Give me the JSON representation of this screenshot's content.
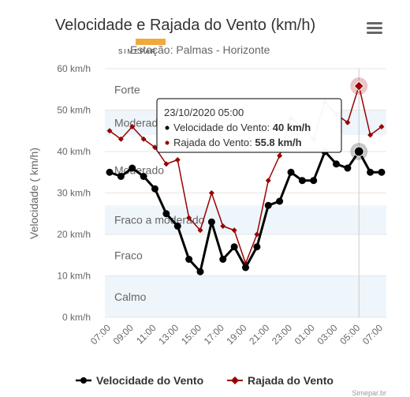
{
  "chart_data": {
    "type": "line",
    "title": "Velocidade e Rajada do Vento (km/h)",
    "subtitle": "Estação: Palmas - Horizonte",
    "ylabel": "Velocidade ( km/h)",
    "ylim": [
      0,
      60
    ],
    "y_ticks": [
      "0 km/h",
      "10 km/h",
      "20 km/h",
      "30 km/h",
      "40 km/h",
      "50 km/h",
      "60 km/h"
    ],
    "x_tick_labels": [
      "07:00",
      "09:00",
      "11:00",
      "13:00",
      "15:00",
      "17:00",
      "19:00",
      "21:00",
      "23:00",
      "01:00",
      "03:00",
      "05:00",
      "07:00"
    ],
    "x_hours": [
      7,
      8,
      9,
      10,
      11,
      12,
      13,
      14,
      15,
      16,
      17,
      18,
      19,
      20,
      21,
      22,
      23,
      24,
      25,
      26,
      27,
      28,
      29,
      30,
      31
    ],
    "bands": [
      {
        "label": "Calmo",
        "from": 0,
        "to": 10,
        "color": "#eef5fb"
      },
      {
        "label": "Fraco",
        "from": 10,
        "to": 20,
        "color": "#ffffff"
      },
      {
        "label": "Fraco a moderado",
        "from": 20,
        "to": 27,
        "color": "#eef5fb"
      },
      {
        "label": "Moderado",
        "from": 27,
        "to": 44,
        "color": "#ffffff"
      },
      {
        "label": "Moderado",
        "from": 44,
        "to": 50,
        "color": "#eef5fb"
      },
      {
        "label": "Forte",
        "from": 50,
        "to": 60,
        "color": "#ffffff"
      }
    ],
    "series": [
      {
        "name": "Velocidade do Vento",
        "color": "#000000",
        "values": [
          35,
          34,
          36,
          34,
          31,
          25,
          22,
          14,
          11,
          23,
          14,
          17,
          12,
          17,
          27,
          28,
          35,
          33,
          33,
          40,
          37,
          36,
          40,
          35,
          35
        ]
      },
      {
        "name": "Rajada do Vento",
        "color": "#990000",
        "values": [
          45,
          43,
          46,
          43,
          41,
          37,
          38,
          24,
          21,
          30,
          22,
          21,
          13,
          20,
          33,
          39,
          48,
          46,
          43,
          52,
          49,
          47,
          55.8,
          44,
          46
        ]
      }
    ],
    "grid": true,
    "legend": "bottom",
    "crosshair_x": 29,
    "tooltip": {
      "date": "23/10/2020 05:00",
      "lines": [
        {
          "label": "Velocidade do Vento: ",
          "value": "40 km/h",
          "color": "#000000"
        },
        {
          "label": "Rajada do Vento: ",
          "value": "55.8 km/h",
          "color": "#990000"
        }
      ]
    },
    "credits": "Simepar.br"
  },
  "logo_text": "SIMEPAR",
  "icons": {
    "menu": "hamburger-menu-icon"
  }
}
